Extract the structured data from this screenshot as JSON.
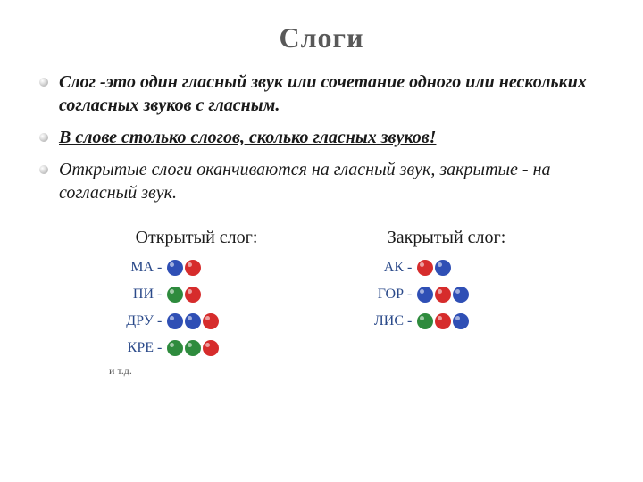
{
  "title": "Слоги",
  "bullets": [
    {
      "text": "Слог -это один гласный звук или сочетание одного или нескольких согласных звуков с гласным.",
      "bold": true,
      "underline": false
    },
    {
      "text": "В слове столько слогов, сколько гласных звуков!",
      "bold": true,
      "underline": true
    },
    {
      "text": "Открытые слоги оканчиваются на гласный звук, закрытые - на согласный звук.",
      "bold": false,
      "underline": false
    }
  ],
  "colors": {
    "blue": "#2f4fb5",
    "red": "#d62c2c",
    "green": "#2e8b3d",
    "label": "#2b4a8a"
  },
  "columns": {
    "open": {
      "header": "Открытый слог:",
      "rows": [
        {
          "label": "МА",
          "circles": [
            "blue",
            "red"
          ]
        },
        {
          "label": "ПИ",
          "circles": [
            "green",
            "red"
          ]
        },
        {
          "label": "ДРУ",
          "circles": [
            "blue",
            "blue",
            "red"
          ]
        },
        {
          "label": "КРЕ",
          "circles": [
            "green",
            "green",
            "red"
          ]
        }
      ],
      "footnote": "и т.д."
    },
    "closed": {
      "header": "Закрытый слог:",
      "rows": [
        {
          "label": "АК",
          "circles": [
            "red",
            "blue"
          ]
        },
        {
          "label": "ГОР",
          "circles": [
            "blue",
            "red",
            "blue"
          ]
        },
        {
          "label": "ЛИС",
          "circles": [
            "green",
            "red",
            "blue"
          ]
        }
      ]
    }
  }
}
